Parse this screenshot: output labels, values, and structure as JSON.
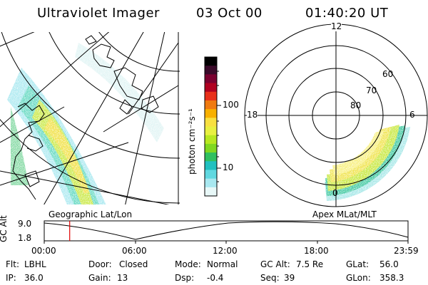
{
  "header": {
    "instrument": "Ultraviolet Imager",
    "date": "03 Oct 00",
    "time": "01:40:20 UT"
  },
  "colorbar": {
    "unit_label": "photon cm⁻²s⁻¹",
    "ticks": [
      "100",
      "10"
    ],
    "colors": [
      "#000000",
      "#3a0a2a",
      "#7a0030",
      "#b00020",
      "#e8301a",
      "#f07a10",
      "#f8b000",
      "#f8e040",
      "#e8f040",
      "#b8e820",
      "#80d820",
      "#30c060",
      "#20c0c0",
      "#60d8e0",
      "#a8e8f0",
      "#e8f8f8"
    ]
  },
  "left_panel": {
    "label": "Geographic Lat/Lon"
  },
  "right_panel": {
    "label": "Apex MLat/MLT",
    "mlt_labels": {
      "top": "12",
      "left": "18",
      "right": "6",
      "bottom": "0"
    },
    "lat_labels": [
      "60",
      "70",
      "80"
    ]
  },
  "timeline": {
    "axis_label": "GC Alt",
    "y_ticks": [
      "9.0",
      "1.8"
    ],
    "x_ticks": [
      "00:00",
      "06:00",
      "12:00",
      "18:00",
      "23:59"
    ],
    "current_fraction": 0.07
  },
  "info": {
    "row1": [
      {
        "label": "Flt:",
        "value": "LBHL"
      },
      {
        "label": "Door:",
        "value": "Closed"
      },
      {
        "label": "Mode:",
        "value": "Normal"
      },
      {
        "label": "GC Alt:",
        "value": "7.5 Re"
      },
      {
        "label": "GLat:",
        "value": "56.0"
      }
    ],
    "row2": [
      {
        "label": "IP:",
        "value": "36.0"
      },
      {
        "label": "Gain:",
        "value": "13"
      },
      {
        "label": "Dsp:",
        "value": "-0.4"
      },
      {
        "label": "Seq:",
        "value": "39"
      },
      {
        "label": "GLon:",
        "value": "358.3"
      }
    ]
  }
}
